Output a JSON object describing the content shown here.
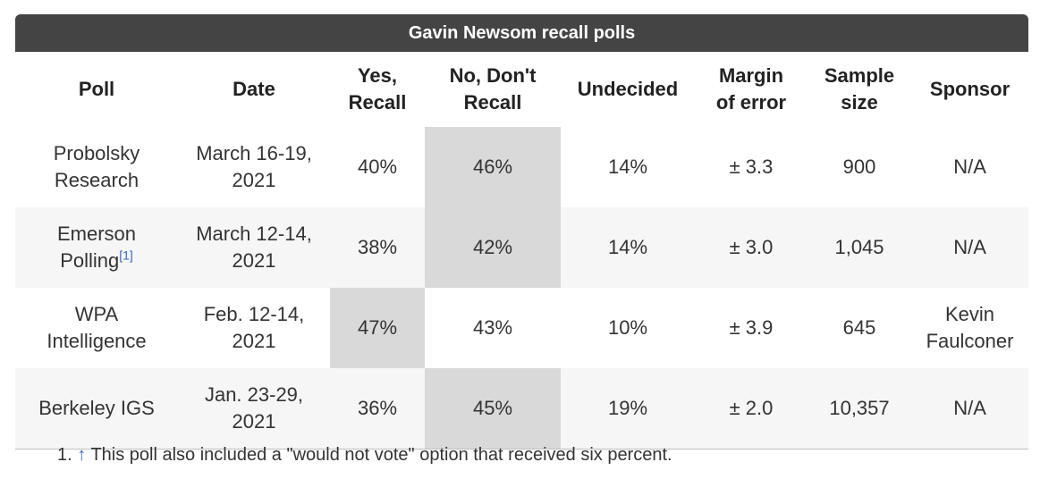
{
  "title": "Gavin Newsom recall polls",
  "headers": [
    {
      "line1": "Poll",
      "line2": ""
    },
    {
      "line1": "Date",
      "line2": ""
    },
    {
      "line1": "Yes,",
      "line2": "Recall"
    },
    {
      "line1": "No, Don't",
      "line2": "Recall"
    },
    {
      "line1": "Undecided",
      "line2": ""
    },
    {
      "line1": "Margin",
      "line2": "of error"
    },
    {
      "line1": "Sample",
      "line2": "size"
    },
    {
      "line1": "Sponsor",
      "line2": ""
    }
  ],
  "rows": [
    {
      "poll_line1": "Probolsky",
      "poll_line2": "Research",
      "poll_ref": "",
      "date_line1": "March 16-19,",
      "date_line2": "2021",
      "yes": "40%",
      "no": "46%",
      "undecided": "14%",
      "margin": "± 3.3",
      "sample": "900",
      "sponsor_line1": "N/A",
      "sponsor_line2": "",
      "leader": "no"
    },
    {
      "poll_line1": "Emerson",
      "poll_line2": "Polling",
      "poll_ref": "[1]",
      "date_line1": "March 12-14,",
      "date_line2": "2021",
      "yes": "38%",
      "no": "42%",
      "undecided": "14%",
      "margin": "± 3.0",
      "sample": "1,045",
      "sponsor_line1": "N/A",
      "sponsor_line2": "",
      "leader": "no"
    },
    {
      "poll_line1": "WPA",
      "poll_line2": "Intelligence",
      "poll_ref": "",
      "date_line1": "Feb. 12-14,",
      "date_line2": "2021",
      "yes": "47%",
      "no": "43%",
      "undecided": "10%",
      "margin": "± 3.9",
      "sample": "645",
      "sponsor_line1": "Kevin",
      "sponsor_line2": "Faulconer",
      "leader": "yes"
    },
    {
      "poll_line1": "Berkeley IGS",
      "poll_line2": "",
      "poll_ref": "",
      "date_line1": "Jan. 23-29,",
      "date_line2": "2021",
      "yes": "36%",
      "no": "45%",
      "undecided": "19%",
      "margin": "± 2.0",
      "sample": "10,357",
      "sponsor_line1": "N/A",
      "sponsor_line2": "",
      "leader": "no"
    }
  ],
  "footnote": {
    "number": "1.",
    "arrow": "↑",
    "text": "This poll also included a \"would not vote\" option that received six percent."
  },
  "colors": {
    "title_bg": "#444444",
    "highlight": "#d9d9d9",
    "stripe": "#f6f6f6",
    "link": "#3366cc"
  }
}
